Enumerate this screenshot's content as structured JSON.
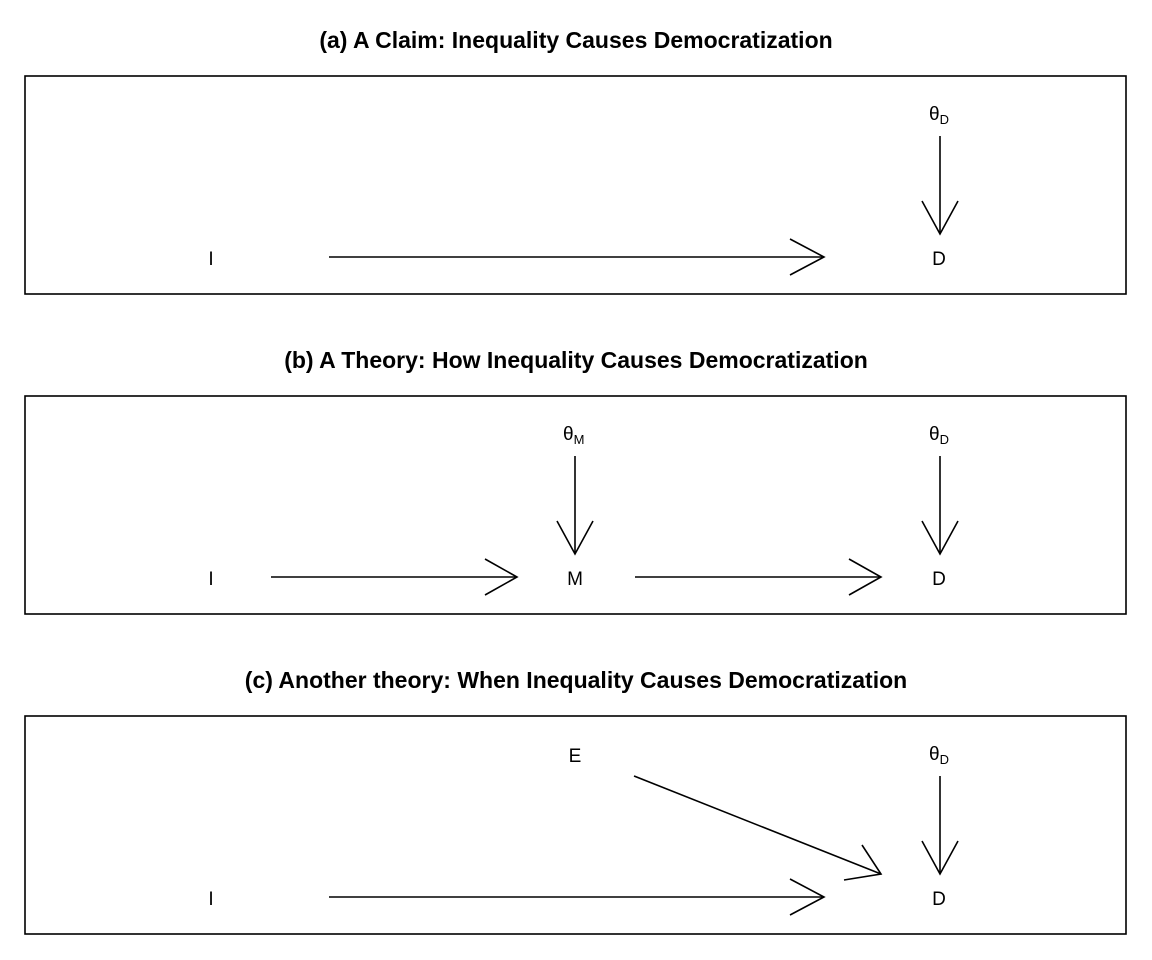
{
  "panels": [
    {
      "title": "(a) A Claim: Inequality Causes Democratization",
      "nodes": {
        "i": "I",
        "d": "D",
        "theta_d": {
          "symbol": "θ",
          "sub": "D"
        }
      }
    },
    {
      "title": "(b) A Theory: How Inequality Causes Democratization",
      "nodes": {
        "i": "I",
        "m": "M",
        "d": "D",
        "theta_m": {
          "symbol": "θ",
          "sub": "M"
        },
        "theta_d": {
          "symbol": "θ",
          "sub": "D"
        }
      }
    },
    {
      "title": "(c) Another theory: When Inequality Causes Democratization",
      "nodes": {
        "i": "I",
        "e": "E",
        "d": "D",
        "theta_d": {
          "symbol": "θ",
          "sub": "D"
        }
      }
    }
  ],
  "edges": [
    {
      "panel": 0,
      "from": "I",
      "to": "D"
    },
    {
      "panel": 0,
      "from": "θD",
      "to": "D"
    },
    {
      "panel": 1,
      "from": "I",
      "to": "M"
    },
    {
      "panel": 1,
      "from": "M",
      "to": "D"
    },
    {
      "panel": 1,
      "from": "θM",
      "to": "M"
    },
    {
      "panel": 1,
      "from": "θD",
      "to": "D"
    },
    {
      "panel": 2,
      "from": "I",
      "to": "D"
    },
    {
      "panel": 2,
      "from": "E",
      "to": "D"
    },
    {
      "panel": 2,
      "from": "θD",
      "to": "D"
    }
  ],
  "colors": {
    "stroke": "#000000",
    "background": "#ffffff"
  }
}
